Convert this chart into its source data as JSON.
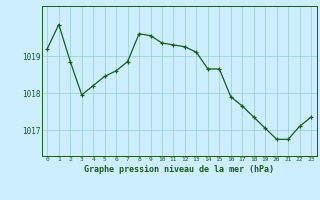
{
  "hours": [
    0,
    1,
    2,
    3,
    4,
    5,
    6,
    7,
    8,
    9,
    10,
    11,
    12,
    13,
    14,
    15,
    16,
    17,
    18,
    19,
    20,
    21,
    22,
    23
  ],
  "pressure": [
    1019.2,
    1019.85,
    1018.85,
    1017.95,
    1018.2,
    1018.45,
    1018.6,
    1018.85,
    1019.6,
    1019.55,
    1019.35,
    1019.3,
    1019.25,
    1019.1,
    1018.65,
    1018.65,
    1017.9,
    1017.65,
    1017.35,
    1017.05,
    1016.75,
    1016.75,
    1017.1,
    1017.35
  ],
  "line_color": "#1a5c1a",
  "bg_color": "#cceeff",
  "grid_color": "#99cccc",
  "ylabel_ticks": [
    1017,
    1018,
    1019
  ],
  "xlabel_label": "Graphe pression niveau de la mer (hPa)",
  "ylim_min": 1016.3,
  "ylim_max": 1020.35,
  "xlim_min": -0.5,
  "xlim_max": 23.5
}
